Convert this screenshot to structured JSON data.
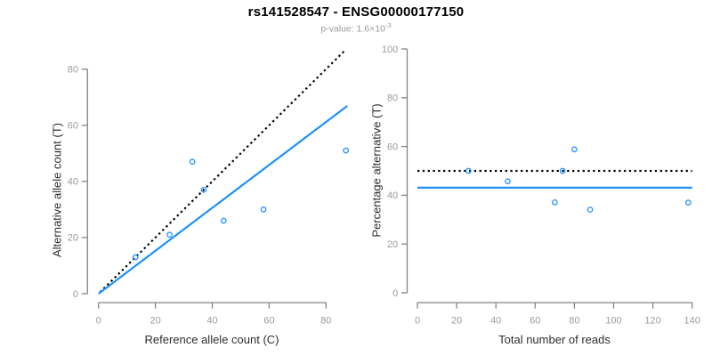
{
  "header": {
    "title": "rs141528547 - ENSG00000177150",
    "subtitle_base": "p-value: 1.6×10",
    "subtitle_exponent": "-3"
  },
  "colors": {
    "accent_blue": "#1E90FF",
    "line_black": "#000000",
    "axis_gray": "#848484",
    "tick_label_gray": "#9b9b9b"
  },
  "chart_data": [
    {
      "type": "scatter",
      "name": "allele-counts",
      "xlabel": "Reference allele count (C)",
      "ylabel": "Alternative allele count (T)",
      "xticks": [
        0,
        20,
        40,
        60,
        80
      ],
      "yticks": [
        0,
        20,
        40,
        60,
        80
      ],
      "xlim": [
        0,
        88
      ],
      "ylim": [
        0,
        88
      ],
      "points": [
        [
          13,
          13
        ],
        [
          25,
          21
        ],
        [
          33,
          47
        ],
        [
          37,
          37
        ],
        [
          44,
          26
        ],
        [
          58,
          30
        ],
        [
          87,
          51
        ]
      ],
      "lines": [
        {
          "name": "identity-line",
          "style": "dotted",
          "color": "#000000",
          "x1": 0.5,
          "y1": 0.5,
          "x2": 87,
          "y2": 87
        },
        {
          "name": "fit-line",
          "style": "solid",
          "color": "#1E90FF",
          "x1": 0,
          "y1": 0,
          "x2": 87.5,
          "y2": 66.9
        }
      ],
      "legend": null,
      "grid": false
    },
    {
      "type": "scatter",
      "name": "percentage-vs-coverage",
      "xlabel": "Total number of reads",
      "ylabel": "Percentage alternative (T)",
      "xticks": [
        0,
        20,
        40,
        60,
        80,
        100,
        120,
        140
      ],
      "yticks": [
        0,
        20,
        40,
        60,
        80,
        100
      ],
      "xlim": [
        0,
        140
      ],
      "ylim": [
        0,
        100
      ],
      "points": [
        [
          26,
          50
        ],
        [
          46,
          45.7
        ],
        [
          70,
          37.1
        ],
        [
          74,
          50
        ],
        [
          80,
          58.8
        ],
        [
          88,
          34.1
        ],
        [
          138,
          37
        ]
      ],
      "lines": [
        {
          "name": "expected-50pct-line",
          "style": "dotted",
          "color": "#000000",
          "x1": 0,
          "y1": 50,
          "x2": 140,
          "y2": 50
        },
        {
          "name": "mean-pct-line",
          "style": "solid",
          "color": "#1E90FF",
          "x1": 0,
          "y1": 43.1,
          "x2": 140,
          "y2": 43.1
        }
      ],
      "legend": null,
      "grid": false
    }
  ]
}
